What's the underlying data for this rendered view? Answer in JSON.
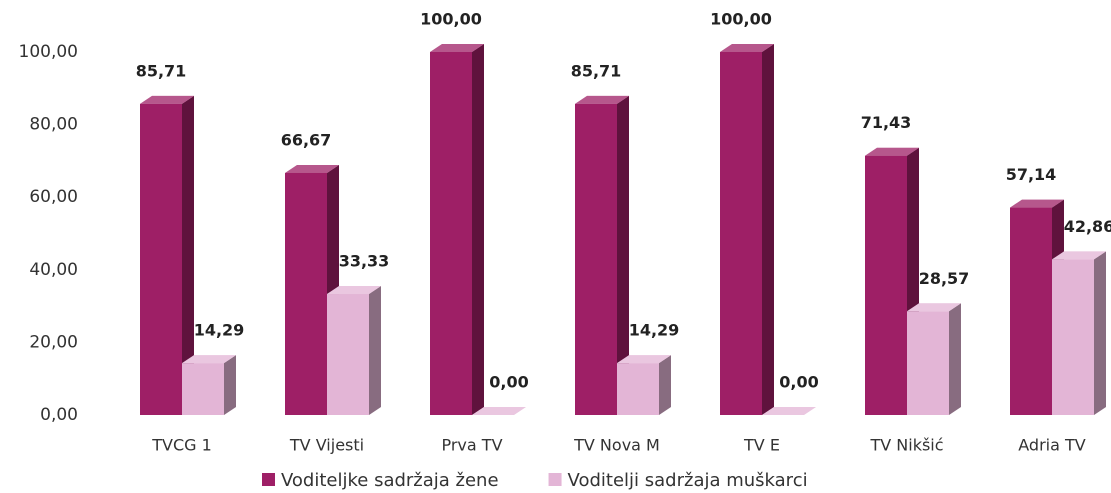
{
  "chart_data": {
    "type": "bar3d",
    "categories": [
      "TVCG 1",
      "TV Vijesti",
      "Prva TV",
      "TV Nova M",
      "TV E",
      "TV Nikšić",
      "Adria TV"
    ],
    "series": [
      {
        "name": "Voditeljke sadržaja žene",
        "color": "#9e1f66",
        "values": [
          85.71,
          66.67,
          100,
          85.71,
          100,
          71.43,
          57.14
        ],
        "value_labels": [
          "85,71",
          "66,67",
          "100,00",
          "85,71",
          "100,00",
          "71,43",
          "57,14"
        ]
      },
      {
        "name": "Voditelji sadržaja muškarci",
        "color": "#e3b5d6",
        "values": [
          14.29,
          33.33,
          0,
          14.29,
          0,
          28.57,
          42.86
        ],
        "value_labels": [
          "14,29",
          "33,33",
          "0,00",
          "14,29",
          "0,00",
          "28,57",
          "42,86"
        ]
      }
    ],
    "ylim": [
      0,
      100
    ],
    "yticks": [
      {
        "value": 0,
        "label": "0,00"
      },
      {
        "value": 20,
        "label": "20,00"
      },
      {
        "value": 40,
        "label": "40,00"
      },
      {
        "value": 60,
        "label": "60,00"
      },
      {
        "value": 80,
        "label": "80,00"
      },
      {
        "value": 100,
        "label": "100,00"
      }
    ],
    "legend": "bottom"
  }
}
